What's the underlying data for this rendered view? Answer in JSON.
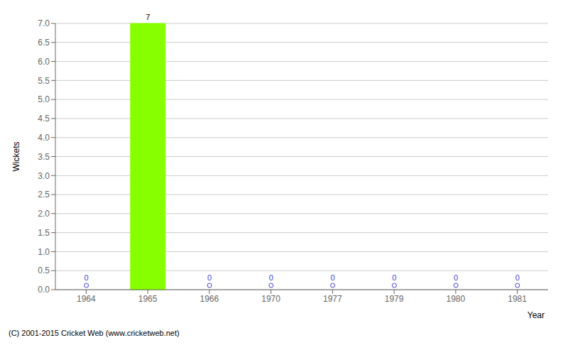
{
  "chart_data": {
    "type": "bar",
    "categories": [
      "1964",
      "1965",
      "1966",
      "1970",
      "1977",
      "1979",
      "1980",
      "1981"
    ],
    "values": [
      0,
      7,
      0,
      0,
      0,
      0,
      0,
      0
    ],
    "colors": [
      "#4444cc",
      "#88ff00",
      "#4444cc",
      "#4444cc",
      "#4444cc",
      "#4444cc",
      "#4444cc",
      "#4444cc"
    ],
    "x_label": "Year",
    "y_label": "Wickets",
    "ylim": [
      0,
      7.0
    ],
    "yticks": [
      {
        "value": 0,
        "label": "0.0"
      },
      0.5,
      {
        "value": 1,
        "label": "1.0"
      },
      1.5,
      {
        "value": 2,
        "label": "2.0"
      },
      2.5,
      {
        "value": 3,
        "label": "3.0"
      },
      3.5,
      {
        "value": 4,
        "label": "4.0"
      },
      4.5,
      {
        "value": 5,
        "label": "5.0"
      },
      5.5,
      {
        "value": 6,
        "label": "6.0"
      },
      6.5,
      {
        "value": 7,
        "label": "7.0"
      }
    ],
    "grid": true,
    "data_labels": true,
    "annotations": [
      "(C) 2001-2015 Cricket Web (www.cricketweb.net)"
    ]
  }
}
